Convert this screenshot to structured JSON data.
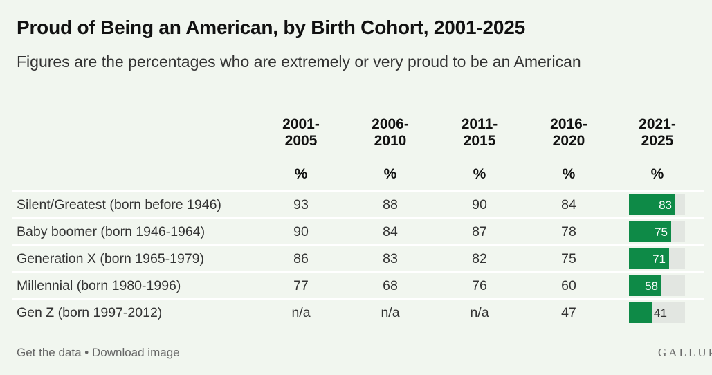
{
  "header": {
    "title": "Proud of Being an American, by Birth Cohort, 2001-2025",
    "subtitle": "Figures are the percentages who are extremely or very proud to be an American"
  },
  "columns": [
    {
      "label": "2001-\n2005",
      "unit": "%"
    },
    {
      "label": "2006-\n2010",
      "unit": "%"
    },
    {
      "label": "2011-\n2015",
      "unit": "%"
    },
    {
      "label": "2016-\n2020",
      "unit": "%"
    },
    {
      "label": "2021-\n2025",
      "unit": "%"
    }
  ],
  "rows": [
    {
      "label": "Silent/Greatest (born before 1946)",
      "values": [
        "93",
        "88",
        "90",
        "84"
      ],
      "latest": 83
    },
    {
      "label": "Baby boomer (born 1946-1964)",
      "values": [
        "90",
        "84",
        "87",
        "78"
      ],
      "latest": 75
    },
    {
      "label": "Generation X (born 1965-1979)",
      "values": [
        "86",
        "83",
        "82",
        "75"
      ],
      "latest": 71
    },
    {
      "label": "Millennial (born 1980-1996)",
      "values": [
        "77",
        "68",
        "76",
        "60"
      ],
      "latest": 58
    },
    {
      "label": "Gen Z (born 1997-2012)",
      "values": [
        "n/a",
        "n/a",
        "n/a",
        "47"
      ],
      "latest": 41
    }
  ],
  "footer": {
    "get_data": "Get the data",
    "separator": " • ",
    "download": "Download image",
    "brand": "GALLUP"
  },
  "colors": {
    "bar_fill": "#0e8a47",
    "bar_track": "#e2e6e1",
    "background": "#f1f6ef"
  },
  "chart_data": {
    "type": "table",
    "title": "Proud of Being an American, by Birth Cohort, 2001-2025",
    "subtitle": "Figures are the percentages who are extremely or very proud to be an American",
    "columns": [
      "2001-2005",
      "2006-2010",
      "2011-2015",
      "2016-2020",
      "2021-2025"
    ],
    "unit": "%",
    "rows": [
      {
        "cohort": "Silent/Greatest (born before 1946)",
        "values": [
          93,
          88,
          90,
          84,
          83
        ]
      },
      {
        "cohort": "Baby boomer (born 1946-1964)",
        "values": [
          90,
          84,
          87,
          78,
          75
        ]
      },
      {
        "cohort": "Generation X (born 1965-1979)",
        "values": [
          86,
          83,
          82,
          75,
          71
        ]
      },
      {
        "cohort": "Millennial (born 1980-1996)",
        "values": [
          77,
          68,
          76,
          60,
          58
        ]
      },
      {
        "cohort": "Gen Z (born 1997-2012)",
        "values": [
          null,
          null,
          null,
          47,
          41
        ]
      }
    ],
    "bar_column": "2021-2025",
    "bar_max": 100
  }
}
